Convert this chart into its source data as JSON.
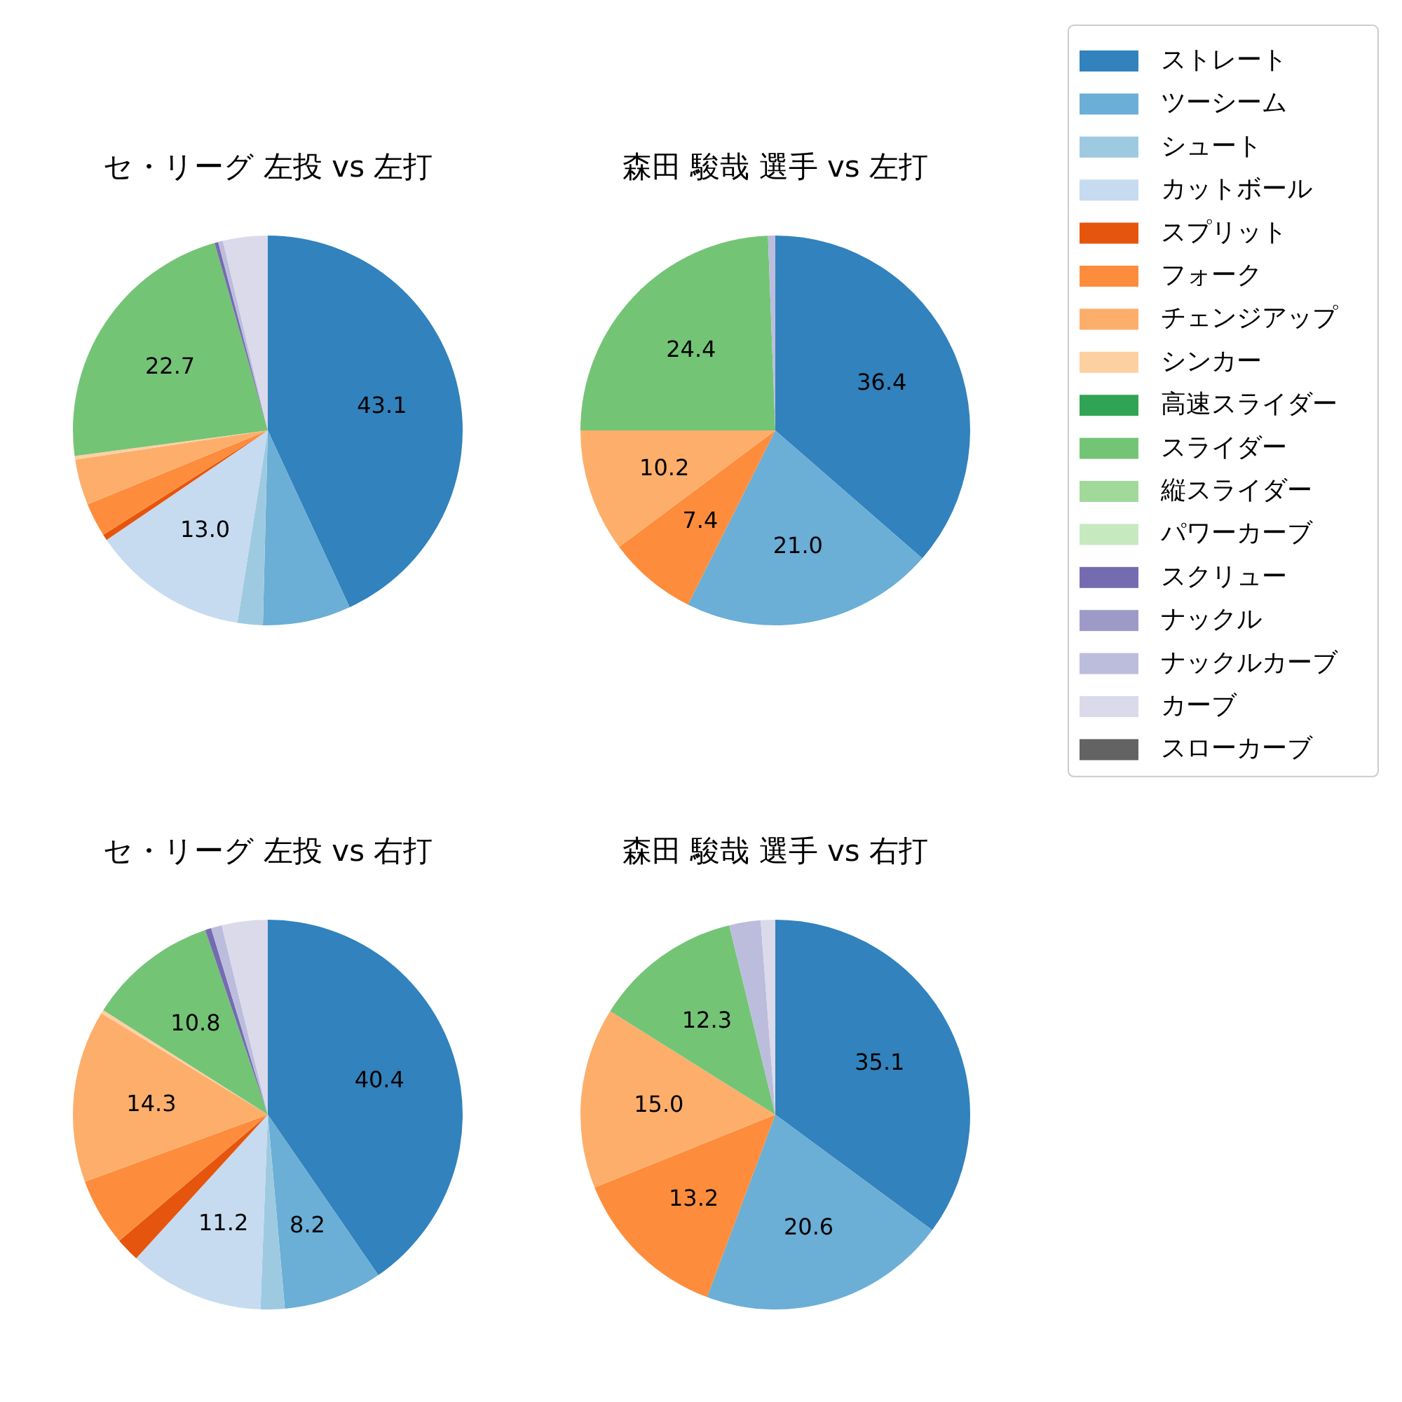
{
  "chart_data": [
    {
      "type": "pie",
      "title": "セ・リーグ 左投 vs 左打",
      "legend": "right",
      "categories": [
        "ストレート",
        "ツーシーム",
        "シュート",
        "カットボール",
        "スプリット",
        "フォーク",
        "チェンジアップ",
        "シンカー",
        "高速スライダー",
        "スライダー",
        "縦スライダー",
        "パワーカーブ",
        "スクリュー",
        "ナックル",
        "ナックルカーブ",
        "カーブ",
        "スローカーブ"
      ],
      "values": [
        43.1,
        7.3,
        2.1,
        13.0,
        0.5,
        2.8,
        3.8,
        0.3,
        0,
        22.7,
        0,
        0,
        0.3,
        0,
        0.4,
        3.7,
        0
      ],
      "value_labels": [
        "43.1",
        null,
        null,
        "13.0",
        null,
        null,
        null,
        null,
        null,
        "22.7",
        null,
        null,
        null,
        null,
        null,
        null,
        null
      ],
      "colors": [
        "#3182bd",
        "#6baed6",
        "#9ecae1",
        "#c6dbef",
        "#e6550d",
        "#fd8d3c",
        "#fdae6b",
        "#fdd0a2",
        "#31a354",
        "#74c476",
        "#a1d99b",
        "#c7e9c0",
        "#756bb1",
        "#9e9ac8",
        "#bcbddc",
        "#dadaeb",
        "#636363"
      ]
    },
    {
      "type": "pie",
      "title": "森田 駿哉 選手 vs 左打",
      "categories": [
        null,
        null,
        null,
        null,
        null,
        null
      ],
      "values": [
        36.4,
        21.0,
        7.4,
        10.2,
        24.4,
        0.6
      ],
      "value_labels": [
        "36.4",
        "21.0",
        "7.4",
        "10.2",
        "24.4",
        null
      ],
      "colors": [
        "#3182bd",
        "#6baed6",
        "#fd8d3c",
        "#fdae6b",
        "#74c476",
        "#bcbddc"
      ]
    },
    {
      "type": "pie",
      "title": "セ・リーグ 左投 vs 右打",
      "categories": [
        null,
        null,
        null,
        null,
        null,
        null,
        null,
        null,
        null,
        null,
        null,
        null
      ],
      "values": [
        40.4,
        8.2,
        2.0,
        11.2,
        2.0,
        5.6,
        14.3,
        0.3,
        10.8,
        0.5,
        0.9,
        3.8
      ],
      "value_labels": [
        "40.4",
        "8.2",
        null,
        "11.2",
        null,
        null,
        "14.3",
        null,
        "10.8",
        null,
        null,
        null
      ],
      "colors": [
        "#3182bd",
        "#6baed6",
        "#9ecae1",
        "#c6dbef",
        "#e6550d",
        "#fd8d3c",
        "#fdae6b",
        "#fdd0a2",
        "#74c476",
        "#756bb1",
        "#bcbddc",
        "#dadaeb"
      ]
    },
    {
      "type": "pie",
      "title": "森田 駿哉 選手 vs 右打",
      "categories": [
        null,
        null,
        null,
        null,
        null,
        null,
        null
      ],
      "values": [
        35.1,
        20.6,
        13.2,
        15.0,
        12.3,
        2.6,
        1.2
      ],
      "value_labels": [
        "35.1",
        "20.6",
        "13.2",
        "15.0",
        "12.3",
        null,
        null
      ],
      "colors": [
        "#3182bd",
        "#6baed6",
        "#fd8d3c",
        "#fdae6b",
        "#74c476",
        "#bcbddc",
        "#dadaeb"
      ]
    }
  ]
}
